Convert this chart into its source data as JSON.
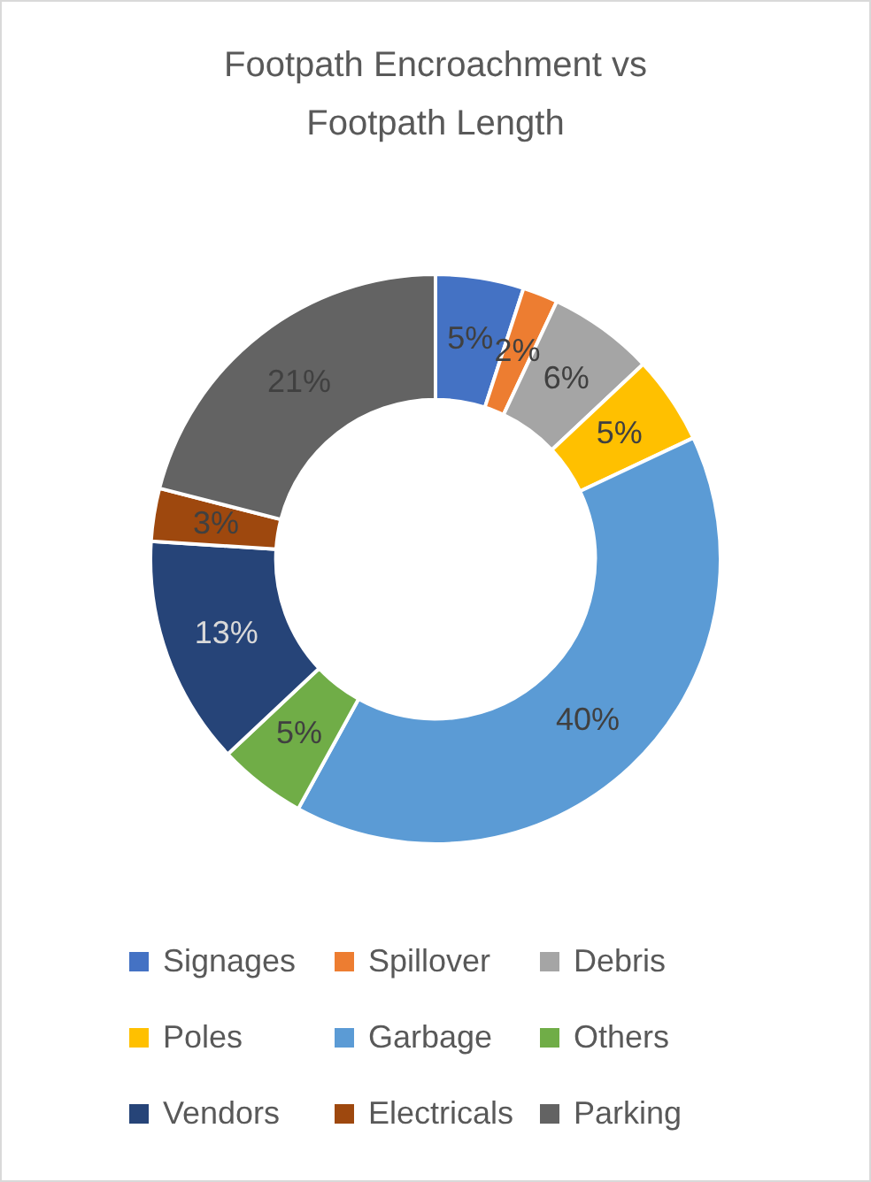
{
  "chart_data": {
    "type": "donut",
    "title": "Footpath Encroachment vs Footpath Length",
    "categories": [
      "Signages",
      "Spillover",
      "Debris",
      "Poles",
      "Garbage",
      "Others",
      "Vendors",
      "Electricals",
      "Parking"
    ],
    "values": [
      5,
      2,
      6,
      5,
      40,
      5,
      13,
      3,
      21
    ],
    "value_labels": [
      "5%",
      "2%",
      "6%",
      "5%",
      "40%",
      "5%",
      "13%",
      "3%",
      "21%"
    ],
    "colors": [
      "#4472c4",
      "#ed7d31",
      "#a5a5a5",
      "#ffc000",
      "#5b9bd5",
      "#70ad47",
      "#264478",
      "#9e480e",
      "#636363"
    ],
    "legend": "bottom"
  }
}
